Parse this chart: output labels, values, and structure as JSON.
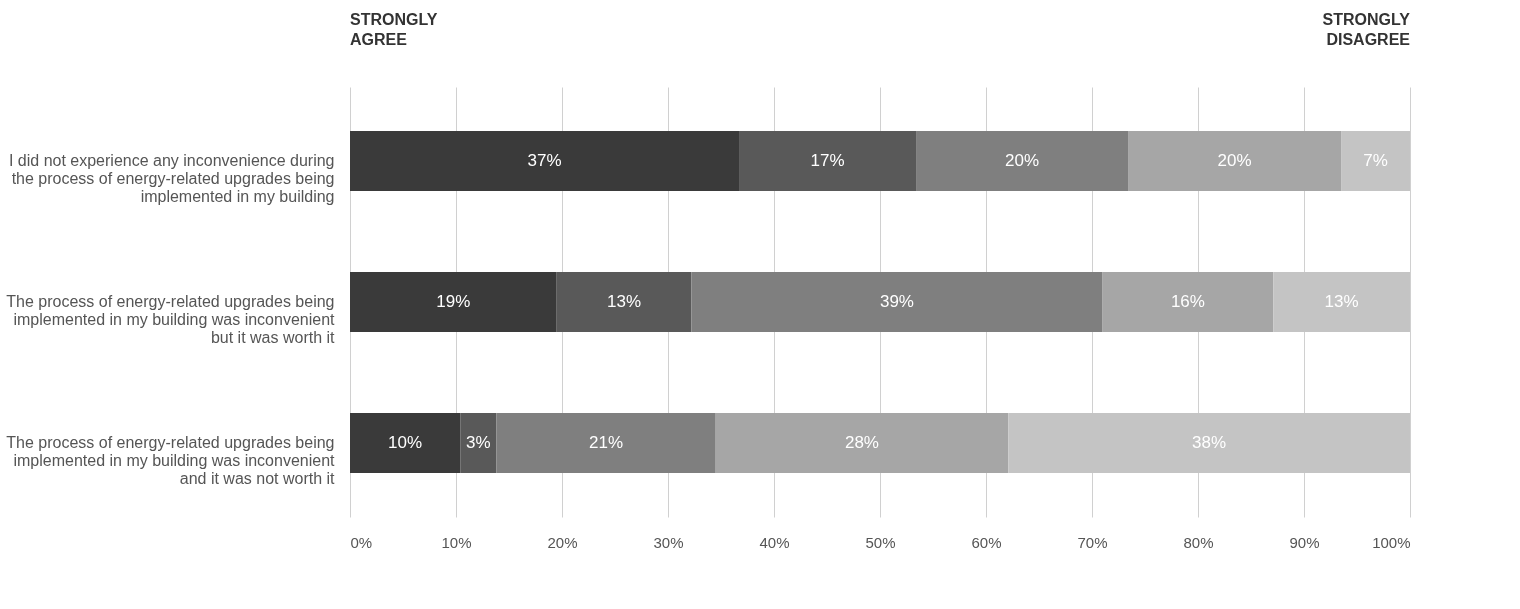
{
  "chart_data": {
    "type": "bar",
    "orientation": "horizontal",
    "stacked": true,
    "categories": [
      "I did not experience any inconvenience during the process of energy-related upgrades being implemented in my building",
      "The process of energy-related upgrades being implemented in my building was inconvenient but it was worth it",
      "The process of energy-related upgrades being implemented in my building was inconvenient and it was not worth it"
    ],
    "series": [
      {
        "color": "#3a3a3a",
        "values": [
          36.7,
          19.5,
          10.4
        ],
        "value_labels": [
          "37%",
          "19%",
          "10%"
        ]
      },
      {
        "color": "#595959",
        "values": [
          16.7,
          12.7,
          3.4
        ],
        "value_labels": [
          "17%",
          "13%",
          "3%"
        ]
      },
      {
        "color": "#7f7f7f",
        "values": [
          20.0,
          38.8,
          20.7
        ],
        "value_labels": [
          "20%",
          "39%",
          "21%"
        ]
      },
      {
        "color": "#a6a6a6",
        "values": [
          20.1,
          16.1,
          27.6
        ],
        "value_labels": [
          "20%",
          "16%",
          "28%"
        ]
      },
      {
        "color": "#c4c4c4",
        "values": [
          6.5,
          12.9,
          37.9
        ],
        "value_labels": [
          "7%",
          "13%",
          "38%"
        ]
      }
    ],
    "xlim": [
      0,
      100
    ],
    "xticks": [
      {
        "value": 0,
        "label": "0%"
      },
      {
        "value": 10,
        "label": "10%"
      },
      {
        "value": 20,
        "label": "20%"
      },
      {
        "value": 30,
        "label": "30%"
      },
      {
        "value": 40,
        "label": "40%"
      },
      {
        "value": 50,
        "label": "50%"
      },
      {
        "value": 60,
        "label": "60%"
      },
      {
        "value": 70,
        "label": "70%"
      },
      {
        "value": 80,
        "label": "80%"
      },
      {
        "value": 90,
        "label": "90%"
      },
      {
        "value": 100,
        "label": "100%"
      }
    ],
    "grid": "x",
    "legend": false,
    "annotations": [
      "STRONGLY AGREE",
      "STRONGLY DISAGREE"
    ]
  }
}
